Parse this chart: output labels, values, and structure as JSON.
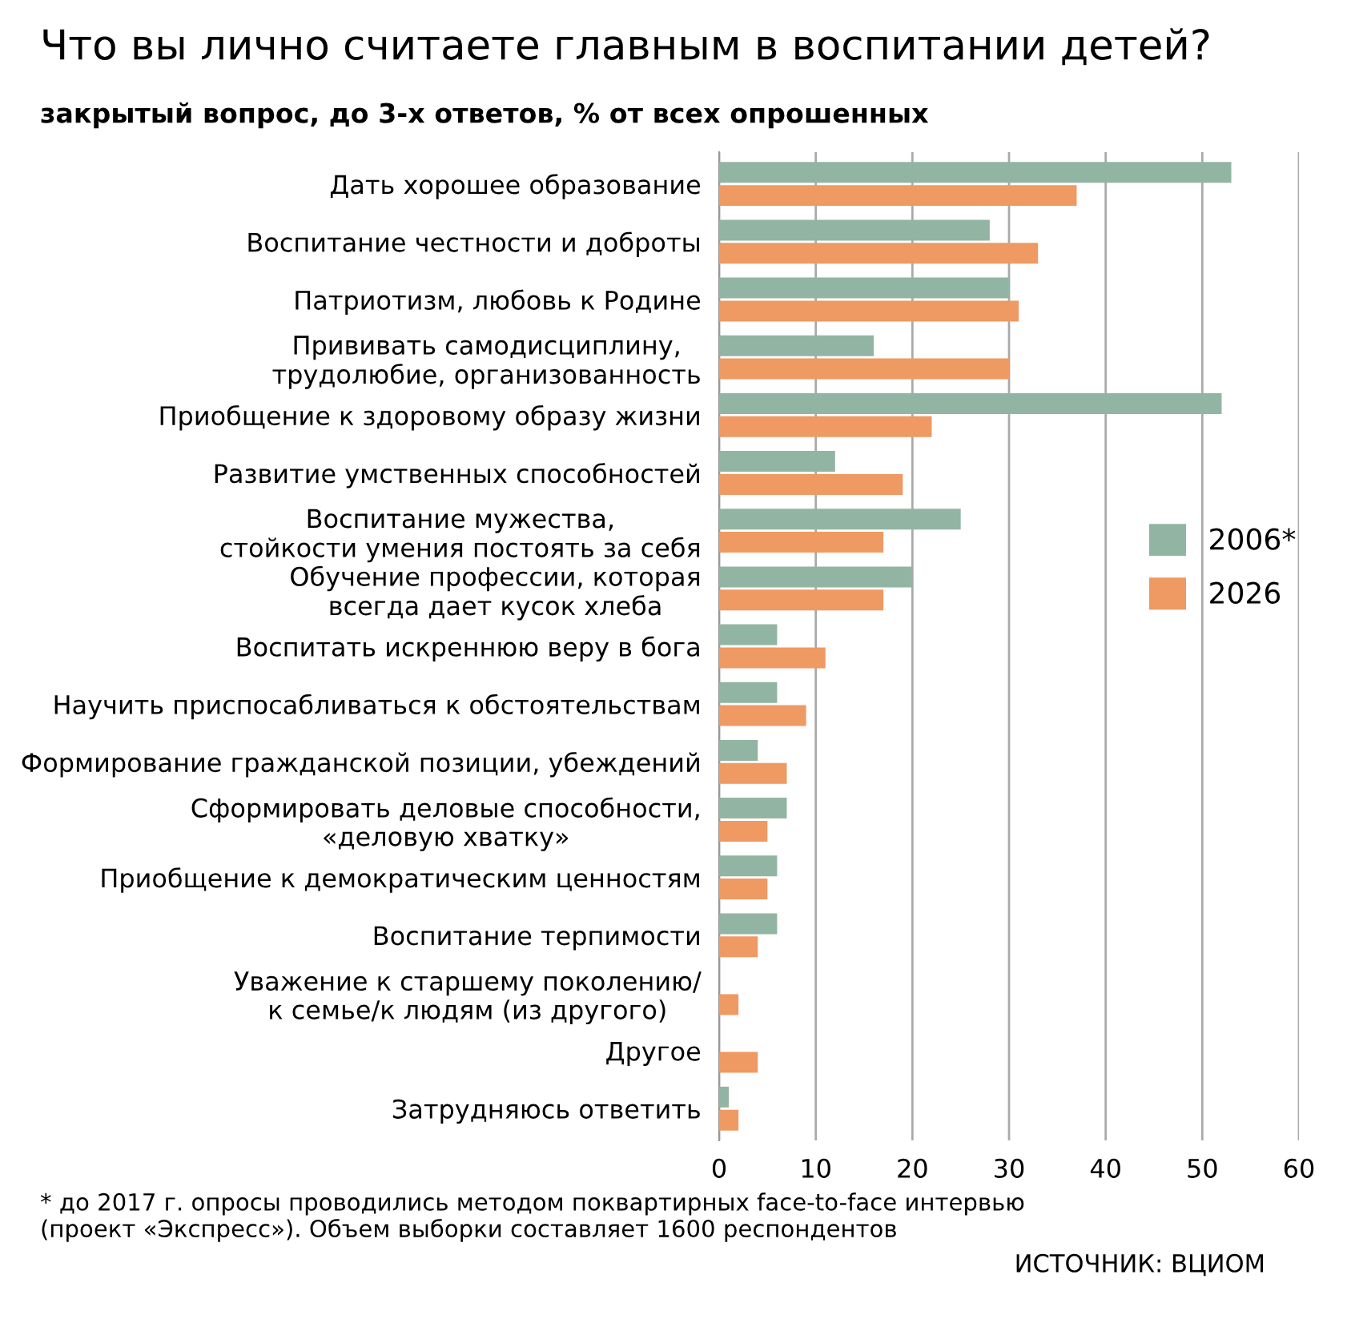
{
  "chart_data": {
    "type": "bar",
    "orientation": "horizontal",
    "title": "Что вы лично считаете главным в воспитании детей?",
    "subtitle": "закрытый вопрос, до 3-х ответов, % от всех опрошенных",
    "categories": [
      "Дать хорошее образование",
      "Воспитание честности и доброты",
      "Патриотизм, любовь к Родине",
      "Прививать самодисциплину,\nтрудолюбие, организованность",
      "Приобщение к здоровому образу жизни",
      "Развитие умственных способностей",
      "Воспитание мужества,\nстойкости умения постоять за себя",
      "Обучение профессии, которая\nвсегда дает кусок хлеба",
      "Воспитать искреннюю веру в бога",
      "Научить приспосабливаться к обстоятельствам",
      "Формирование гражданской позиции, убеждений",
      "Сформировать деловые способности,\n«деловую хватку»",
      "Приобщение к демократическим ценностям",
      "Воспитание терпимости",
      "Уважение к старшему поколению/\nк семье/к людям (из другого)",
      "Другое",
      "Затрудняюсь ответить"
    ],
    "series": [
      {
        "name": "2006*",
        "color": "#92b5a3",
        "values": [
          53,
          28,
          30,
          16,
          52,
          12,
          25,
          20,
          6,
          6,
          4,
          7,
          6,
          6,
          null,
          null,
          1
        ]
      },
      {
        "name": "2026",
        "color": "#ef9963",
        "values": [
          37,
          33,
          31,
          30,
          22,
          19,
          17,
          17,
          11,
          9,
          7,
          5,
          5,
          4,
          2,
          4,
          2
        ]
      }
    ],
    "xlim": [
      0,
      60
    ],
    "xticks": [
      0,
      10,
      20,
      30,
      40,
      50,
      60
    ],
    "grid": "x",
    "legend": "right",
    "annotations": [
      "* до 2017 г. опросы проводились методом поквартирных face-to-face интервью\n(проект «Экспресс»). Объем выборки составляет 1600 респондентов",
      "ИСТОЧНИК: ВЦИОМ"
    ]
  }
}
